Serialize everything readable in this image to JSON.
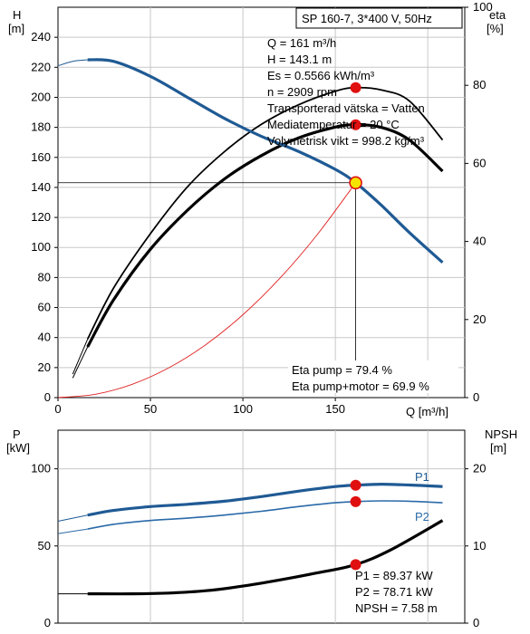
{
  "title_box": "SP 160-7, 3*400 V, 50Hz",
  "colors": {
    "head": "#1f5a94",
    "p1": "#1f5a94",
    "p2": "#2a6aa8",
    "eta": "#000000",
    "npsh": "#000000",
    "system": "#e02020",
    "marker": "#e01010",
    "marker_head": "#f5e400",
    "grid": "#c8c8c8",
    "axis": "#000000"
  },
  "info_text": [
    "Q = 161 m³/h",
    "H = 143.1 m",
    "Es = 0.5566 kWh/m³",
    "n = 2909 rpm",
    "Transporterad vätska = Vatten",
    "Mediatemperatur = 20 °C",
    "Volymetrisk vikt = 998.2 kg/m³"
  ],
  "eta_text": [
    "Eta pump = 79.4 %",
    "Eta pump+motor = 69.9 %"
  ],
  "power_text": [
    "P1 = 89.37 kW",
    "P2 = 78.71 kW",
    "NPSH = 7.58 m"
  ],
  "chart_data": [
    {
      "type": "line",
      "name": "head-and-efficiency",
      "xlabel": "Q [m³/h]",
      "ylabel_left": [
        "H",
        "[m]"
      ],
      "ylabel_right": [
        "eta",
        "[%]"
      ],
      "xlim": [
        0,
        220
      ],
      "ylim_left": [
        0,
        260
      ],
      "ylim_right": [
        0,
        100
      ],
      "x_ticks": [
        0,
        50,
        100,
        150
      ],
      "y_ticks_left": [
        0,
        20,
        40,
        60,
        80,
        100,
        120,
        140,
        160,
        180,
        200,
        220,
        240
      ],
      "y_ticks_right": [
        0,
        20,
        40,
        60,
        80,
        100
      ],
      "grid": true,
      "operating_point": {
        "q": 161,
        "h": 143.1,
        "eta_pump": 79.4,
        "eta_total": 69.9
      },
      "series": [
        {
          "key": "head",
          "axis": "left",
          "x": [
            16,
            30,
            50,
            70,
            90,
            110,
            130,
            150,
            161,
            175,
            190,
            208
          ],
          "y": [
            225,
            224,
            214,
            200,
            186,
            174,
            164,
            152,
            143.1,
            128,
            110,
            90
          ]
        },
        {
          "key": "head_ext",
          "axis": "left",
          "x": [
            0,
            8,
            16
          ],
          "y": [
            221,
            224,
            225
          ]
        },
        {
          "key": "eta_pump",
          "axis": "right",
          "x": [
            16,
            30,
            50,
            70,
            90,
            110,
            130,
            150,
            161,
            175,
            190,
            208
          ],
          "y": [
            15,
            28,
            42,
            54,
            63,
            70,
            75,
            78.5,
            79.4,
            78.8,
            76,
            66
          ]
        },
        {
          "key": "eta_pump_ext",
          "axis": "right",
          "x": [
            8,
            16
          ],
          "y": [
            6,
            15
          ]
        },
        {
          "key": "eta_total",
          "axis": "right",
          "x": [
            16,
            30,
            50,
            70,
            90,
            110,
            130,
            150,
            161,
            175,
            190,
            208
          ],
          "y": [
            13,
            25,
            38,
            48,
            56,
            62,
            66.5,
            69.3,
            69.9,
            69.2,
            66,
            58
          ]
        },
        {
          "key": "eta_total_ext",
          "axis": "right",
          "x": [
            8,
            16
          ],
          "y": [
            5,
            13
          ]
        },
        {
          "key": "system",
          "axis": "left",
          "x": [
            0,
            20,
            40,
            60,
            80,
            100,
            120,
            140,
            161
          ],
          "y": [
            0,
            2.2,
            8.8,
            19.9,
            35.3,
            55.2,
            79.5,
            108.2,
            143.1
          ]
        }
      ]
    },
    {
      "type": "line",
      "name": "power-and-npsh",
      "xlabel": "",
      "ylabel_left": [
        "P",
        "[kW]"
      ],
      "ylabel_right": [
        "NPSH",
        "[m]"
      ],
      "xlim": [
        0,
        220
      ],
      "ylim_left": [
        0,
        125
      ],
      "ylim_right": [
        0,
        25
      ],
      "y_ticks_left": [
        0,
        50,
        100
      ],
      "y_ticks_right": [
        0,
        10,
        20
      ],
      "grid": true,
      "operating_point": {
        "q": 161,
        "p1": 89.37,
        "p2": 78.71,
        "npsh": 7.58
      },
      "series": [
        {
          "key": "p1",
          "axis": "left",
          "label": "P1",
          "x": [
            16,
            30,
            50,
            70,
            90,
            110,
            130,
            150,
            161,
            175,
            190,
            208
          ],
          "y": [
            70,
            73,
            75.5,
            77,
            79,
            82,
            85.5,
            88.5,
            89.37,
            90,
            89.5,
            88.5
          ]
        },
        {
          "key": "p1_ext",
          "axis": "left",
          "x": [
            0,
            16
          ],
          "y": [
            66,
            70
          ]
        },
        {
          "key": "p2",
          "axis": "left",
          "label": "P2",
          "x": [
            16,
            30,
            50,
            70,
            90,
            110,
            130,
            150,
            161,
            175,
            190,
            208
          ],
          "y": [
            61,
            64,
            66.5,
            68,
            70,
            72.5,
            75.5,
            78,
            78.71,
            79.2,
            79,
            78
          ]
        },
        {
          "key": "p2_ext",
          "axis": "left",
          "x": [
            0,
            16
          ],
          "y": [
            58,
            61
          ]
        },
        {
          "key": "npsh",
          "axis": "right",
          "x": [
            16,
            40,
            60,
            80,
            100,
            120,
            140,
            161,
            180,
            208
          ],
          "y": [
            3.8,
            3.8,
            3.9,
            4.2,
            4.8,
            5.6,
            6.5,
            7.58,
            9.5,
            13.3
          ]
        },
        {
          "key": "npsh_ext",
          "axis": "right",
          "x": [
            0,
            16
          ],
          "y": [
            3.8,
            3.8
          ]
        }
      ]
    }
  ]
}
